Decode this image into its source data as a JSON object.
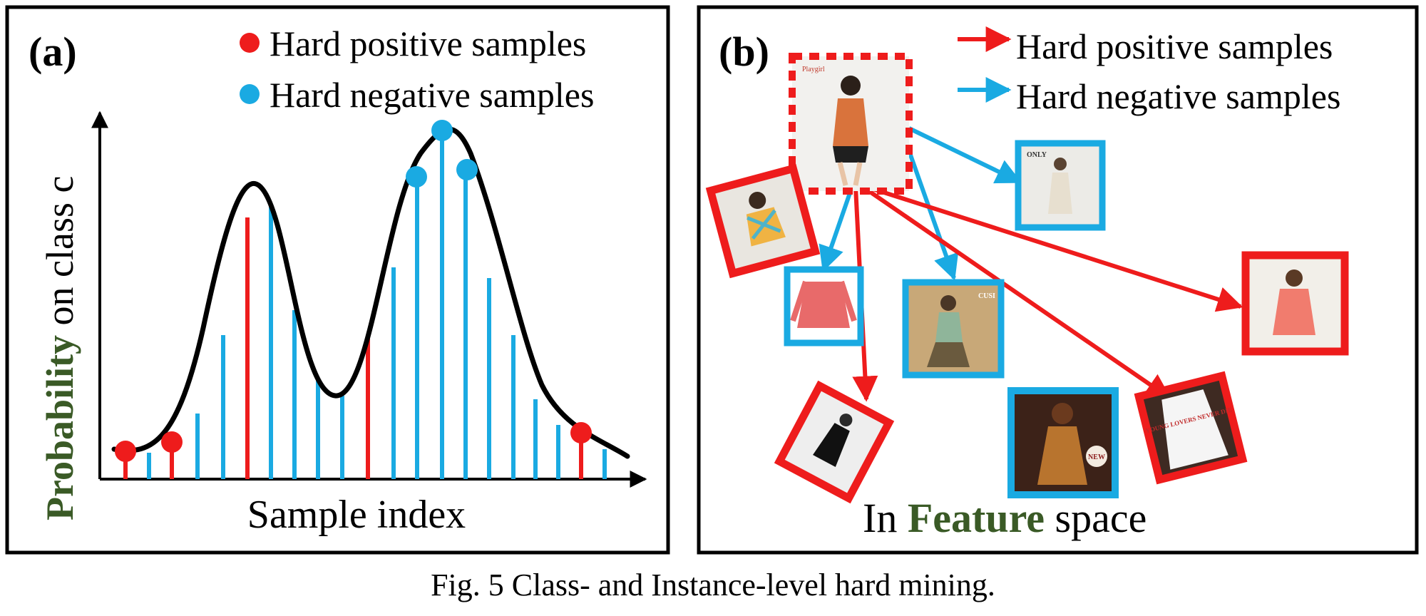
{
  "panel_a": {
    "label": "(a)",
    "legend": [
      {
        "text": "Hard positive samples",
        "color": "#ee1c1c"
      },
      {
        "text": "Hard negative samples",
        "color": "#1aaae2"
      }
    ],
    "ylabel_highlight": "Probability",
    "ylabel_rest": " on class c",
    "xlabel": "Sample index"
  },
  "panel_b": {
    "label": "(b)",
    "legend": [
      {
        "text": "Hard positive samples",
        "color": "#ee1c1c"
      },
      {
        "text": "Hard negative samples",
        "color": "#1aaae2"
      }
    ],
    "footer_prefix": "In ",
    "footer_highlight": "Feature",
    "footer_suffix": " space",
    "thumb_texts": {
      "anchor_logo": "Playgirl",
      "neg1_logo": "ONLY",
      "neg3_logo": "CUSI",
      "neg4_badge": "NEW",
      "pos5_shirt": "YOUNG LOVERS NEVER DIE"
    }
  },
  "caption": "Fig. 5 Class- and Instance-level hard mining.",
  "colors": {
    "positive": "#ee1c1c",
    "negative": "#1aaae2",
    "highlight_green": "#3a5a26",
    "frame": "#000000"
  }
}
